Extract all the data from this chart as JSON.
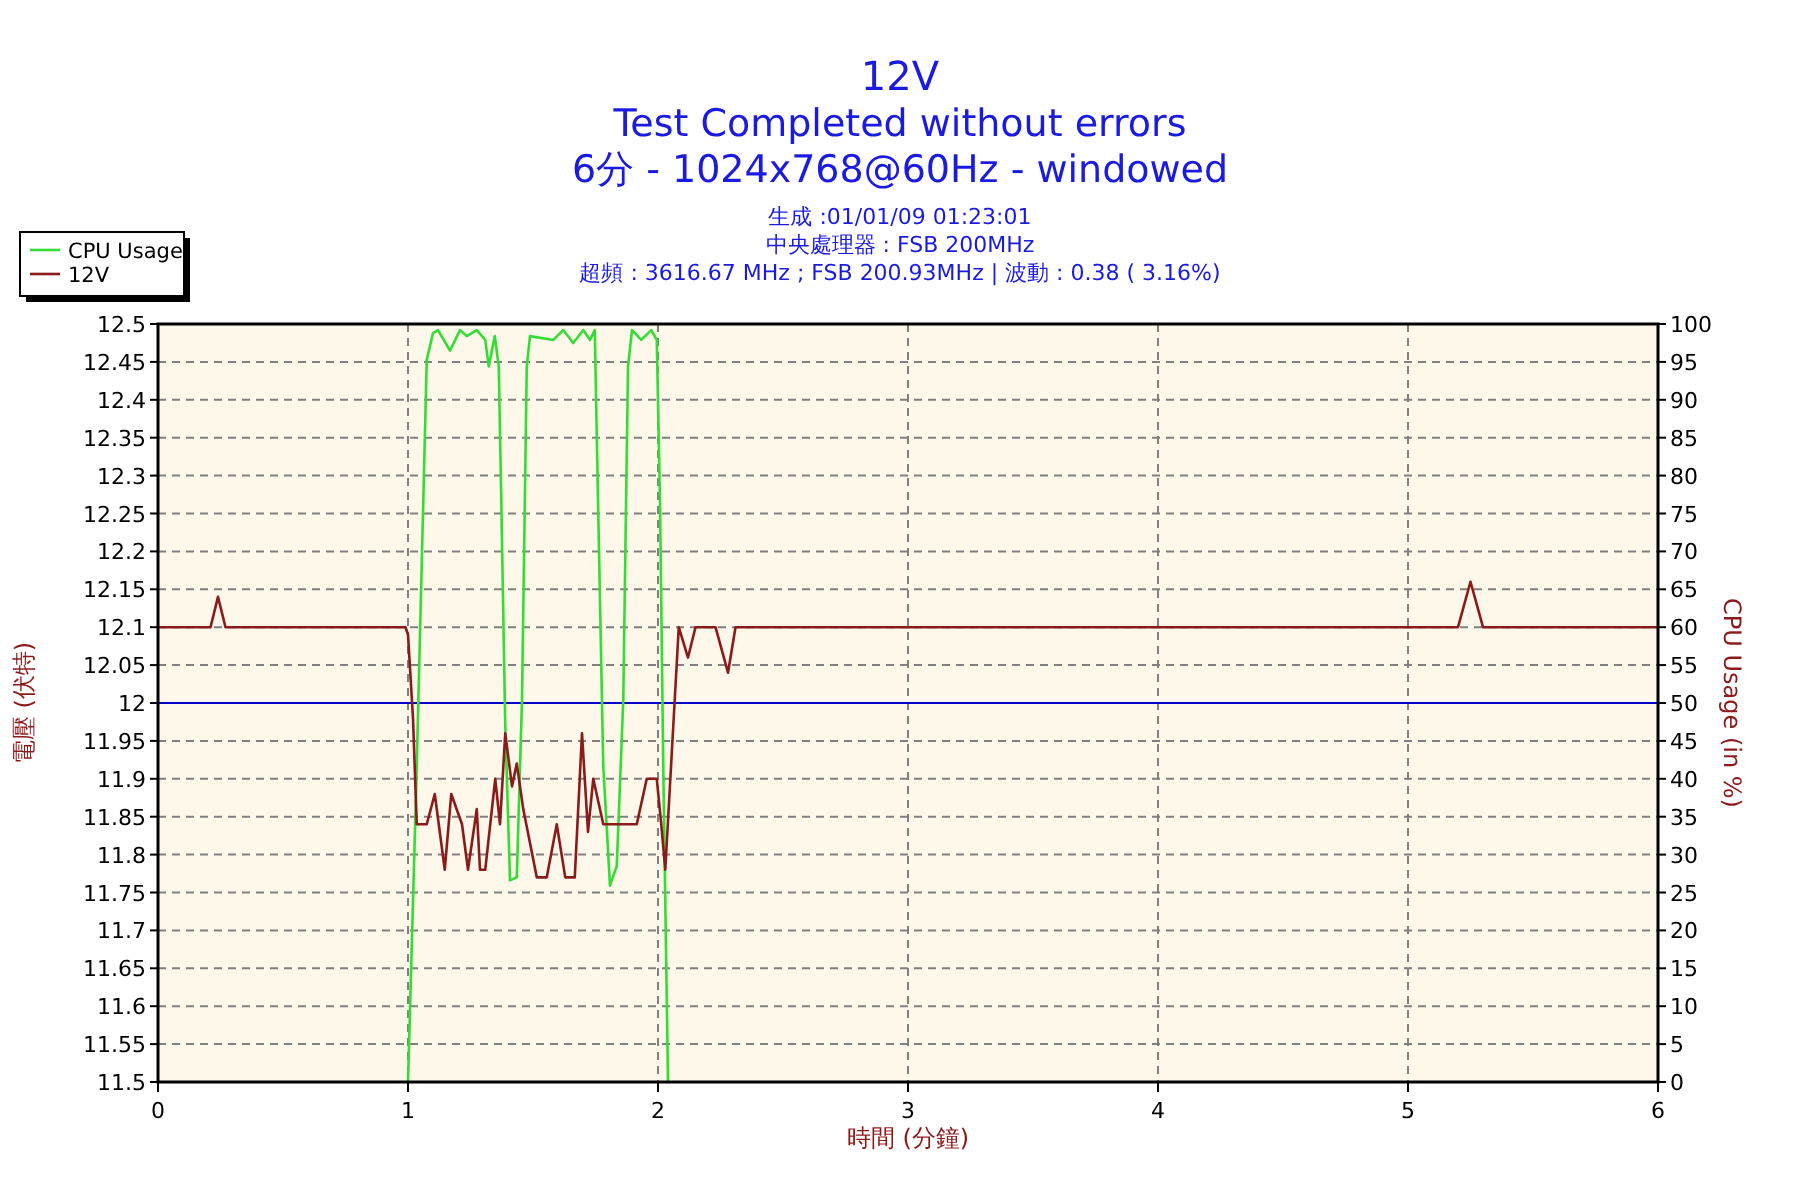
{
  "chart_data": {
    "type": "line",
    "title": "12V",
    "subtitle": "Test Completed without errors",
    "annotations": [
      "6分 - 1024x768@60Hz - windowed",
      "生成 :01/01/09 01:23:01",
      "中央處理器 : FSB 200MHz",
      "超頻 : 3616.67 MHz ; FSB 200.93MHz | 波動 : 0.38 ( 3.16%)"
    ],
    "xlabel": "時間 (分鐘)",
    "ylabel": "電壓 (伏特)",
    "y2label": "CPU Usage (in %)",
    "xlim": [
      0,
      6
    ],
    "xticks": [
      0,
      1,
      2,
      3,
      4,
      5,
      6
    ],
    "ylim": [
      11.5,
      12.5
    ],
    "yticks": [
      11.5,
      11.55,
      11.6,
      11.65,
      11.7,
      11.75,
      11.8,
      11.85,
      11.9,
      11.95,
      12,
      12.05,
      12.1,
      12.15,
      12.2,
      12.25,
      12.3,
      12.35,
      12.4,
      12.45,
      12.5
    ],
    "y2lim": [
      0,
      100
    ],
    "y2ticks": [
      0,
      5,
      10,
      15,
      20,
      25,
      30,
      35,
      40,
      45,
      50,
      55,
      60,
      65,
      70,
      75,
      80,
      85,
      90,
      95,
      100
    ],
    "grid": true,
    "legend": "top left",
    "ref_lines": [
      {
        "axis": "y",
        "value": 12,
        "color": "#0000cc"
      }
    ],
    "series": [
      {
        "name": "CPU Usage",
        "color": "#33dd33",
        "axis": "y2",
        "x": [
          1.0,
          1.035,
          1.075,
          1.1,
          1.12,
          1.168,
          1.208,
          1.235,
          1.275,
          1.309,
          1.323,
          1.347,
          1.363,
          1.373,
          1.389,
          1.408,
          1.435,
          1.456,
          1.475,
          1.488,
          1.581,
          1.621,
          1.661,
          1.701,
          1.728,
          1.747,
          1.76,
          1.781,
          1.808,
          1.835,
          1.861,
          1.88,
          1.896,
          1.933,
          1.973,
          1.995,
          2.008,
          2.021,
          2.04
        ],
        "values": [
          0,
          41.7,
          95.3,
          98.8,
          99.2,
          96.5,
          99.2,
          98.4,
          99.2,
          97.9,
          94.4,
          98.4,
          94.4,
          76.8,
          47,
          26.6,
          27,
          50.4,
          94.4,
          98.4,
          97.9,
          99.2,
          97.5,
          99.2,
          97.9,
          99.2,
          76.8,
          41.7,
          25.9,
          28.5,
          50.4,
          94.4,
          99.2,
          97.9,
          99.2,
          97.9,
          76.8,
          41.7,
          0
        ]
      },
      {
        "name": "12V",
        "color": "#8b1a1a",
        "x": [
          0,
          0.21,
          0.24,
          0.27,
          0.99,
          1.0,
          1.02,
          1.035,
          1.075,
          1.107,
          1.147,
          1.173,
          1.216,
          1.24,
          1.275,
          1.288,
          1.309,
          1.349,
          1.368,
          1.389,
          1.416,
          1.435,
          1.461,
          1.515,
          1.555,
          1.595,
          1.629,
          1.667,
          1.696,
          1.72,
          1.741,
          1.781,
          1.915,
          1.955,
          1.995,
          2.013,
          2.029,
          2.051,
          2.083,
          2.12,
          2.15,
          2.23,
          2.28,
          2.31,
          5.2,
          5.25,
          5.3,
          6
        ],
        "values": [
          12.1,
          12.1,
          12.14,
          12.1,
          12.1,
          12.09,
          11.98,
          11.84,
          11.84,
          11.88,
          11.78,
          11.88,
          11.84,
          11.78,
          11.86,
          11.78,
          11.78,
          11.9,
          11.84,
          11.96,
          11.89,
          11.92,
          11.86,
          11.77,
          11.77,
          11.84,
          11.77,
          11.77,
          11.96,
          11.83,
          11.9,
          11.84,
          11.84,
          11.9,
          11.9,
          11.84,
          11.78,
          11.91,
          12.1,
          12.06,
          12.1,
          12.1,
          12.04,
          12.1,
          12.1,
          12.16,
          12.1,
          12.1
        ]
      }
    ]
  }
}
